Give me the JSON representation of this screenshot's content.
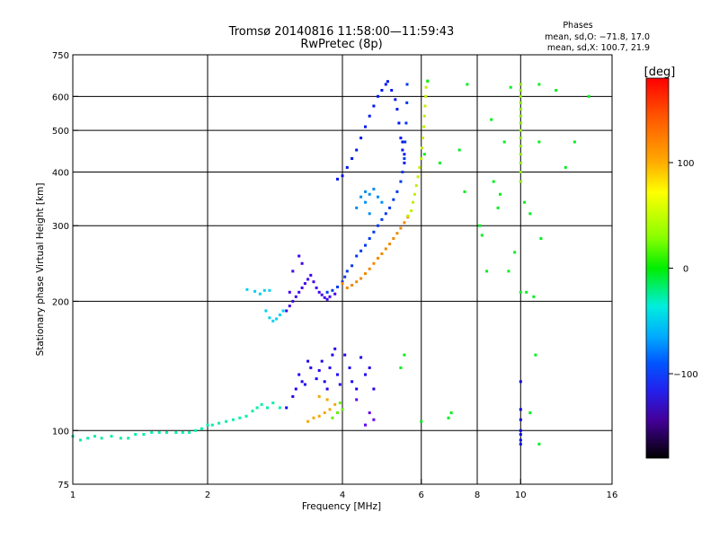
{
  "chart_data": {
    "type": "scatter",
    "title": "Tromsø 20140816 11:58:00—11:59:43",
    "subtitle": "RwPretec (8p)",
    "stats": {
      "heading": "Phases",
      "line_o": "mean, sd,O: −71.8, 17.0",
      "line_x": "mean, sd,X: 100.7, 21.9"
    },
    "xlabel": "Frequency [MHz]",
    "ylabel": "Stationary phase Virtual Height [km]",
    "x_scale": "log",
    "y_scale": "log",
    "xlim": [
      1,
      16
    ],
    "ylim": [
      75,
      750
    ],
    "x_ticks": [
      1,
      2,
      4,
      6,
      8,
      10,
      16
    ],
    "x_tick_labels": [
      "1",
      "2",
      "4",
      "6",
      "8",
      "10",
      "16"
    ],
    "y_ticks": [
      75,
      100,
      200,
      300,
      400,
      500,
      600,
      750
    ],
    "y_tick_labels": [
      "75",
      "100",
      "200",
      "300",
      "400",
      "500",
      "600",
      "750"
    ],
    "grid_x": [
      2,
      4,
      6,
      8,
      10
    ],
    "grid_y": [
      100,
      200,
      300,
      400,
      500,
      600
    ],
    "colorbar": {
      "label": "[deg]",
      "range": [
        -180,
        180
      ],
      "ticks": [
        100,
        0,
        -100
      ],
      "tick_labels": [
        "100",
        "0",
        "−100"
      ],
      "colormap": "rainbow"
    },
    "series": [
      {
        "phase": -10,
        "points": [
          [
            1.0,
            97
          ],
          [
            1.04,
            95
          ],
          [
            1.08,
            96
          ],
          [
            1.12,
            97
          ],
          [
            1.16,
            96
          ],
          [
            1.22,
            97
          ],
          [
            1.28,
            96
          ],
          [
            1.33,
            96
          ],
          [
            1.38,
            98
          ],
          [
            1.44,
            98
          ],
          [
            1.5,
            99
          ],
          [
            1.56,
            99
          ],
          [
            1.62,
            99
          ],
          [
            1.7,
            99
          ],
          [
            1.76,
            99
          ],
          [
            1.82,
            99
          ],
          [
            1.88,
            100
          ],
          [
            1.94,
            101
          ],
          [
            2.0,
            103
          ],
          [
            2.05,
            103
          ],
          [
            2.12,
            104
          ],
          [
            2.2,
            105
          ],
          [
            2.28,
            106
          ],
          [
            2.36,
            107
          ],
          [
            2.44,
            108
          ],
          [
            2.52,
            111
          ],
          [
            2.58,
            113
          ],
          [
            2.64,
            115
          ],
          [
            2.72,
            113
          ],
          [
            2.8,
            116
          ],
          [
            2.9,
            113
          ]
        ]
      },
      {
        "phase": -40,
        "points": [
          [
            2.45,
            213
          ],
          [
            2.55,
            211
          ],
          [
            2.62,
            208
          ],
          [
            2.68,
            212
          ],
          [
            2.75,
            212
          ],
          [
            2.7,
            190
          ],
          [
            2.75,
            183
          ],
          [
            2.8,
            180
          ],
          [
            2.85,
            182
          ],
          [
            2.9,
            186
          ],
          [
            2.95,
            190
          ]
        ]
      },
      {
        "phase": -120,
        "points": [
          [
            3.0,
            190
          ],
          [
            3.05,
            195
          ],
          [
            3.1,
            200
          ],
          [
            3.15,
            205
          ],
          [
            3.2,
            210
          ],
          [
            3.25,
            215
          ],
          [
            3.3,
            220
          ],
          [
            3.35,
            225
          ],
          [
            3.4,
            230
          ],
          [
            3.45,
            222
          ],
          [
            3.5,
            215
          ],
          [
            3.55,
            210
          ],
          [
            3.6,
            207
          ],
          [
            3.65,
            204
          ],
          [
            3.7,
            202
          ],
          [
            3.75,
            205
          ],
          [
            3.85,
            208
          ],
          [
            3.05,
            210
          ],
          [
            3.1,
            235
          ],
          [
            3.2,
            255
          ],
          [
            3.25,
            245
          ]
        ]
      },
      {
        "phase": -85,
        "points": [
          [
            3.7,
            210
          ],
          [
            3.8,
            212
          ],
          [
            3.9,
            216
          ],
          [
            4.0,
            222
          ],
          [
            4.05,
            228
          ],
          [
            4.1,
            235
          ],
          [
            4.2,
            242
          ],
          [
            4.3,
            255
          ],
          [
            4.4,
            262
          ],
          [
            4.5,
            270
          ],
          [
            4.6,
            280
          ],
          [
            4.7,
            290
          ],
          [
            4.8,
            300
          ],
          [
            4.9,
            310
          ],
          [
            5.0,
            320
          ],
          [
            5.1,
            330
          ],
          [
            5.2,
            345
          ],
          [
            5.3,
            360
          ],
          [
            5.4,
            380
          ],
          [
            5.45,
            400
          ],
          [
            5.5,
            430
          ],
          [
            5.52,
            470
          ],
          [
            5.55,
            520
          ],
          [
            5.57,
            580
          ],
          [
            5.58,
            640
          ]
        ]
      },
      {
        "phase": -95,
        "points": [
          [
            3.9,
            385
          ],
          [
            4.0,
            392
          ],
          [
            4.1,
            410
          ],
          [
            4.2,
            430
          ],
          [
            4.3,
            450
          ],
          [
            4.4,
            480
          ],
          [
            4.5,
            510
          ],
          [
            4.6,
            540
          ],
          [
            4.7,
            570
          ],
          [
            4.8,
            600
          ],
          [
            4.9,
            620
          ],
          [
            5.0,
            640
          ],
          [
            5.05,
            650
          ],
          [
            5.15,
            620
          ],
          [
            5.25,
            590
          ],
          [
            5.3,
            560
          ],
          [
            5.35,
            520
          ],
          [
            5.4,
            480
          ],
          [
            5.45,
            450
          ],
          [
            5.5,
            420
          ],
          [
            5.5,
            440
          ],
          [
            5.45,
            470
          ]
        ]
      },
      {
        "phase": -60,
        "points": [
          [
            4.3,
            330
          ],
          [
            4.4,
            350
          ],
          [
            4.5,
            340
          ],
          [
            4.6,
            355
          ],
          [
            4.7,
            365
          ],
          [
            4.8,
            350
          ],
          [
            4.9,
            340
          ],
          [
            4.5,
            360
          ],
          [
            4.6,
            320
          ]
        ]
      },
      {
        "phase": 140,
        "points": [
          [
            4.0,
            220
          ],
          [
            4.1,
            215
          ],
          [
            4.2,
            218
          ],
          [
            4.3,
            222
          ],
          [
            4.4,
            226
          ],
          [
            4.5,
            232
          ],
          [
            4.6,
            238
          ],
          [
            4.7,
            245
          ],
          [
            4.8,
            252
          ],
          [
            4.9,
            258
          ],
          [
            5.0,
            265
          ],
          [
            5.1,
            272
          ],
          [
            5.2,
            280
          ],
          [
            5.3,
            288
          ],
          [
            5.4,
            296
          ],
          [
            5.5,
            305
          ],
          [
            5.6,
            314
          ]
        ]
      },
      {
        "phase": 95,
        "points": [
          [
            5.6,
            316
          ],
          [
            5.7,
            325
          ],
          [
            5.75,
            340
          ],
          [
            5.8,
            355
          ],
          [
            5.85,
            372
          ],
          [
            5.9,
            390
          ],
          [
            5.95,
            410
          ],
          [
            6.0,
            430
          ],
          [
            6.02,
            455
          ],
          [
            6.05,
            480
          ],
          [
            6.08,
            510
          ],
          [
            6.1,
            540
          ],
          [
            6.12,
            570
          ],
          [
            6.14,
            600
          ],
          [
            6.15,
            630
          ],
          [
            6.2,
            650
          ]
        ]
      },
      {
        "phase": -110,
        "points": [
          [
            3.0,
            113
          ],
          [
            3.1,
            120
          ],
          [
            3.15,
            125
          ],
          [
            3.2,
            135
          ],
          [
            3.25,
            130
          ],
          [
            3.3,
            128
          ],
          [
            3.35,
            145
          ],
          [
            3.4,
            140
          ],
          [
            3.5,
            132
          ],
          [
            3.55,
            138
          ],
          [
            3.6,
            145
          ],
          [
            3.65,
            130
          ],
          [
            3.7,
            125
          ],
          [
            3.75,
            140
          ],
          [
            3.8,
            150
          ],
          [
            3.85,
            155
          ],
          [
            3.9,
            135
          ],
          [
            3.95,
            128
          ],
          [
            4.05,
            150
          ],
          [
            4.15,
            140
          ],
          [
            4.2,
            130
          ],
          [
            4.3,
            125
          ],
          [
            4.4,
            148
          ],
          [
            4.5,
            135
          ],
          [
            4.6,
            140
          ],
          [
            4.7,
            125
          ]
        ]
      },
      {
        "phase": 130,
        "points": [
          [
            3.35,
            105
          ],
          [
            3.45,
            107
          ],
          [
            3.55,
            108
          ],
          [
            3.65,
            110
          ],
          [
            3.75,
            112
          ],
          [
            3.85,
            115
          ],
          [
            3.7,
            118
          ],
          [
            3.55,
            120
          ]
        ]
      },
      {
        "phase": 70,
        "points": [
          [
            3.8,
            107
          ],
          [
            3.9,
            110
          ],
          [
            4.0,
            112
          ],
          [
            3.95,
            116
          ]
        ]
      },
      {
        "phase": -130,
        "points": [
          [
            4.6,
            110
          ],
          [
            4.7,
            106
          ],
          [
            4.5,
            103
          ],
          [
            4.3,
            118
          ]
        ]
      },
      {
        "phase": 80,
        "points": [
          [
            10.0,
            600
          ],
          [
            10.0,
            620
          ],
          [
            10.0,
            640
          ],
          [
            10.0,
            580
          ],
          [
            10.0,
            560
          ],
          [
            10.0,
            540
          ],
          [
            10.0,
            520
          ],
          [
            10.0,
            500
          ],
          [
            10.0,
            480
          ],
          [
            10.0,
            460
          ],
          [
            10.0,
            440
          ],
          [
            10.0,
            420
          ],
          [
            10.0,
            400
          ],
          [
            10.0,
            380
          ]
        ]
      },
      {
        "phase": -100,
        "points": [
          [
            10.0,
            130
          ],
          [
            10.0,
            112
          ],
          [
            10.0,
            100
          ],
          [
            10.0,
            95
          ],
          [
            10.0,
            93
          ],
          [
            10.0,
            98
          ],
          [
            10.0,
            106
          ]
        ]
      },
      {
        "phase": 30,
        "points": [
          [
            6.2,
            652
          ],
          [
            7.6,
            640
          ],
          [
            9.5,
            630
          ],
          [
            11.0,
            640
          ],
          [
            12.0,
            620
          ],
          [
            14.2,
            600
          ],
          [
            8.6,
            530
          ],
          [
            9.2,
            470
          ],
          [
            11.0,
            470
          ],
          [
            12.6,
            410
          ],
          [
            13.2,
            470
          ],
          [
            10.2,
            340
          ],
          [
            10.5,
            320
          ],
          [
            8.9,
            330
          ],
          [
            9.0,
            355
          ],
          [
            8.7,
            380
          ],
          [
            9.7,
            260
          ],
          [
            10.0,
            210
          ],
          [
            10.3,
            210
          ],
          [
            11.1,
            280
          ],
          [
            8.1,
            300
          ],
          [
            8.2,
            285
          ],
          [
            7.5,
            360
          ],
          [
            6.6,
            420
          ],
          [
            6.1,
            440
          ],
          [
            7.3,
            450
          ],
          [
            8.4,
            235
          ],
          [
            9.4,
            235
          ],
          [
            10.7,
            205
          ],
          [
            10.8,
            150
          ],
          [
            10.5,
            110
          ],
          [
            11.0,
            93
          ],
          [
            6.9,
            107
          ],
          [
            6.0,
            105
          ],
          [
            7.0,
            110
          ],
          [
            5.5,
            150
          ],
          [
            5.4,
            140
          ]
        ]
      }
    ]
  }
}
